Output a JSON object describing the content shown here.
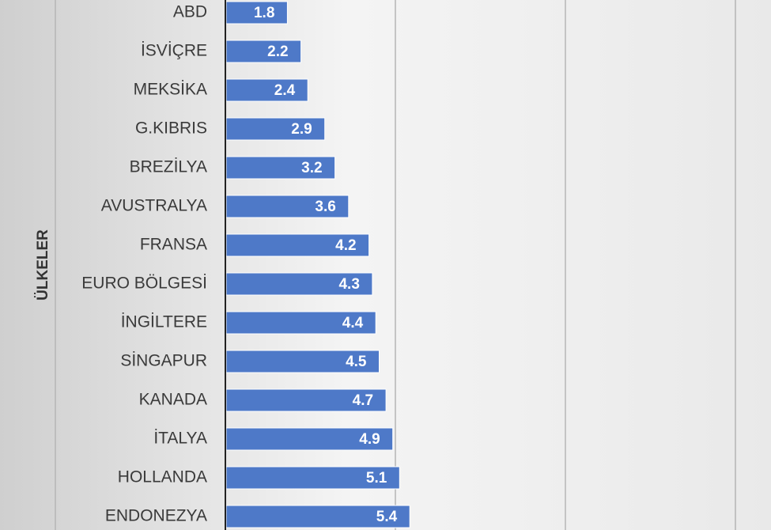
{
  "chart_data": {
    "type": "bar",
    "orientation": "horizontal",
    "ylabel": "ÜLKELER",
    "xlim": [
      0,
      20
    ],
    "grid": true,
    "bar_color": "#4e79c8",
    "categories": [
      "ABD",
      "İSVİÇRE",
      "MEKSİKA",
      "G.KIBRIS",
      "BREZİLYA",
      "AVUSTRALYA",
      "FRANSA",
      "EURO BÖLGESİ",
      "İNGİLTERE",
      "SİNGAPUR",
      "KANADA",
      "İTALYA",
      "HOLLANDA",
      "ENDONEZYA"
    ],
    "values": [
      1.8,
      2.2,
      2.4,
      2.9,
      3.2,
      3.6,
      4.2,
      4.3,
      4.4,
      4.5,
      4.7,
      4.9,
      5.1,
      5.4
    ],
    "value_labels": [
      "1.8",
      "2.2",
      "2.4",
      "2.9",
      "3.2",
      "3.6",
      "4.2",
      "4.3",
      "4.4",
      "4.5",
      "4.7",
      "4.9",
      "5.1",
      "5.4"
    ]
  }
}
